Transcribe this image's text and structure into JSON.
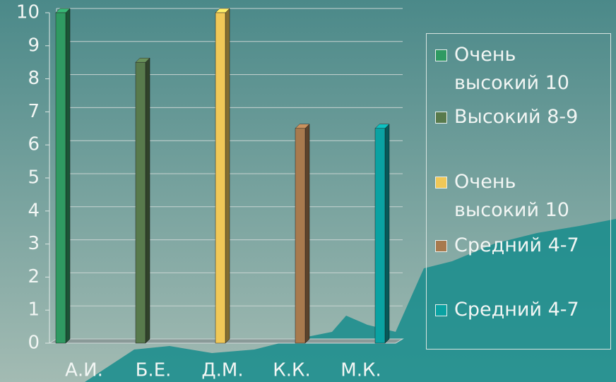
{
  "chart_data": {
    "type": "bar",
    "categories": [
      "А.И.",
      "Б.Е.",
      "Д.М.",
      "К.К.",
      "М.К."
    ],
    "series": [
      {
        "name": "Очень высокий 10",
        "color": "#2f9a62",
        "values": [
          10,
          null,
          null,
          null,
          null
        ]
      },
      {
        "name": "Высокий 8-9",
        "color": "#587a4c",
        "values": [
          null,
          8.5,
          null,
          null,
          null
        ]
      },
      {
        "name": "Очень высокий 10",
        "color": "#f0c858",
        "values": [
          null,
          null,
          10,
          null,
          null
        ]
      },
      {
        "name": "Средний 4-7",
        "color": "#a87a4e",
        "values": [
          null,
          null,
          null,
          6.5,
          null
        ]
      },
      {
        "name": "Средний 4-7",
        "color": "#0aa2a2",
        "values": [
          null,
          null,
          null,
          null,
          6.5
        ]
      }
    ],
    "ylim": [
      0,
      10
    ],
    "yticks": [
      0,
      1,
      2,
      3,
      4,
      5,
      6,
      7,
      8,
      9,
      10
    ],
    "grid": true,
    "legend": "right"
  }
}
